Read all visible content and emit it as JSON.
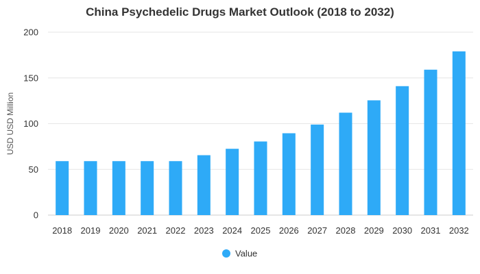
{
  "chart_data": {
    "type": "bar",
    "title": "China Psychedelic Drugs Market Outlook (2018 to 2032)",
    "xlabel": "",
    "ylabel": "USD USD Million",
    "ylim": [
      0,
      200
    ],
    "yticks": [
      0,
      50,
      100,
      150,
      200
    ],
    "grid": true,
    "legend_position": "bottom-center",
    "categories": [
      "2018",
      "2019",
      "2020",
      "2021",
      "2022",
      "2023",
      "2024",
      "2025",
      "2026",
      "2027",
      "2028",
      "2029",
      "2030",
      "2031",
      "2032"
    ],
    "series": [
      {
        "name": "Value",
        "color": "#2eaaf7",
        "values": [
          59,
          59,
          59,
          59,
          59,
          65.5,
          72.5,
          80.5,
          89.5,
          99,
          112,
          125.5,
          141,
          159,
          179
        ]
      }
    ]
  }
}
